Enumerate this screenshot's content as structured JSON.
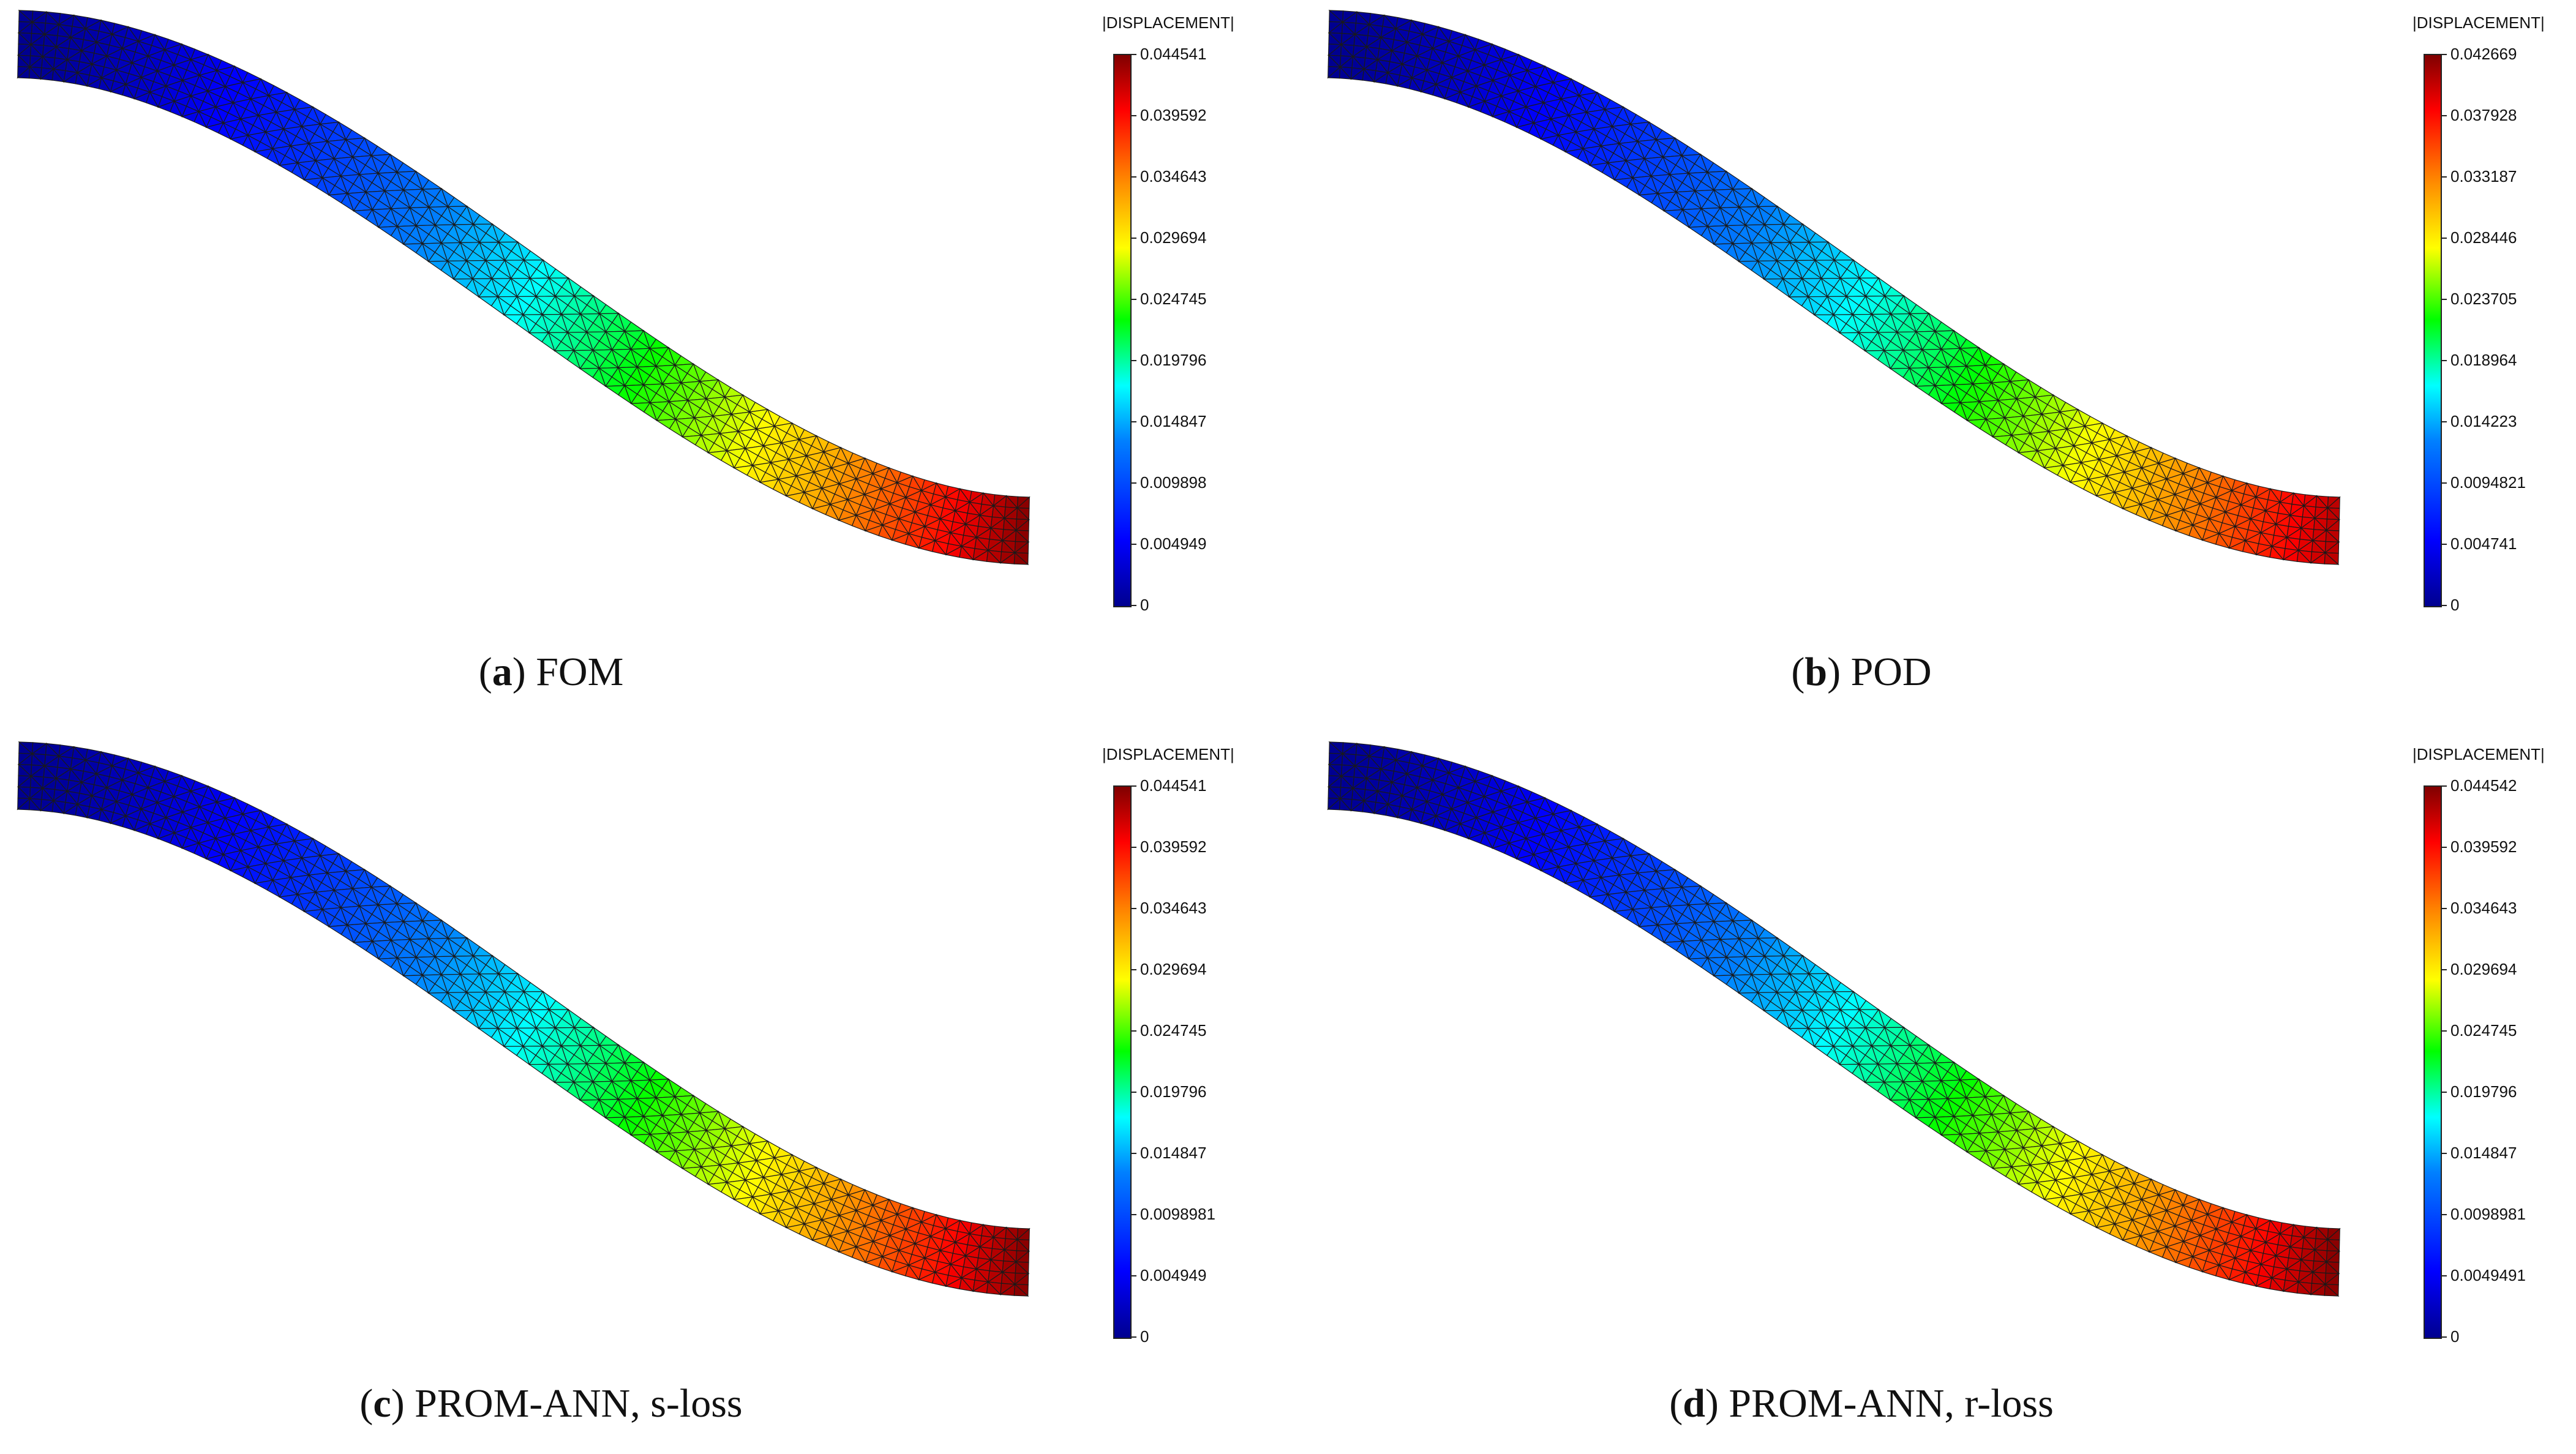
{
  "colorbar_title": "|DISPLACEMENT|",
  "panels": [
    {
      "letter": "a",
      "caption": "FOM",
      "ticks": [
        "0.044541",
        "0.039592",
        "0.034643",
        "0.029694",
        "0.024745",
        "0.019796",
        "0.014847",
        "0.009898",
        "0.004949",
        "0"
      ]
    },
    {
      "letter": "b",
      "caption": "POD",
      "ticks": [
        "0.042669",
        "0.037928",
        "0.033187",
        "0.028446",
        "0.023705",
        "0.018964",
        "0.014223",
        "0.0094821",
        "0.004741",
        "0"
      ]
    },
    {
      "letter": "c",
      "caption": "PROM-ANN, s-loss",
      "ticks": [
        "0.044541",
        "0.039592",
        "0.034643",
        "0.029694",
        "0.024745",
        "0.019796",
        "0.014847",
        "0.0098981",
        "0.004949",
        "0"
      ]
    },
    {
      "letter": "d",
      "caption": "PROM-ANN, r-loss",
      "ticks": [
        "0.044542",
        "0.039592",
        "0.034643",
        "0.029694",
        "0.024745",
        "0.019796",
        "0.014847",
        "0.0098981",
        "0.0049491",
        "0"
      ]
    }
  ],
  "colors": {
    "low": "#00008f",
    "high": "#800000"
  }
}
